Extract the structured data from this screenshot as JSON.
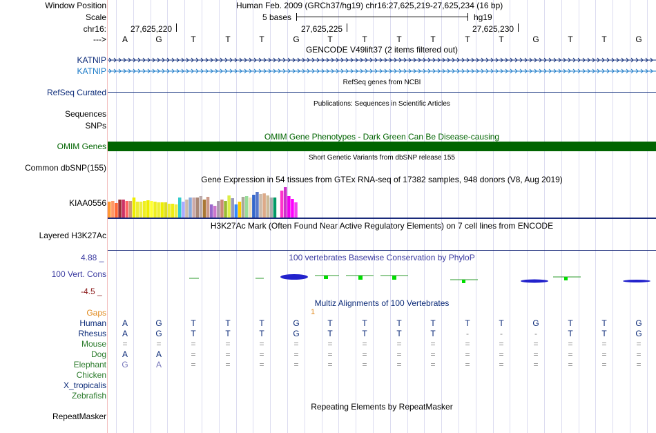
{
  "header": {
    "window_position_label": "Window Position",
    "assembly_text": "Human Feb. 2009 (GRCh37/hg19)   chr16:27,625,219-27,625,234 (16 bp)",
    "scale_label": "Scale",
    "scale_text": "5 bases",
    "scale_assembly": "hg19",
    "chrom_label": "chr16:",
    "coord_1": "27,625,220",
    "coord_2": "27,625,225",
    "coord_3": "27,625,230",
    "strand_label": "--->"
  },
  "bases": [
    "A",
    "G",
    "T",
    "T",
    "T",
    "G",
    "T",
    "T",
    "T",
    "T",
    "T",
    "T",
    "G",
    "T",
    "T",
    "G"
  ],
  "tracks": {
    "gencode_title": "GENCODE V49lift37 (2 items filtered out)",
    "gene_1": "KATNIP",
    "gene_2": "KATNIP",
    "refseq_title": "RefSeq genes from NCBI",
    "refseq_label": "RefSeq Curated",
    "pubs_title": "Publications: Sequences in Scientific Articles",
    "sequences_label": "Sequences",
    "snps_label": "SNPs",
    "omim_title": "OMIM Gene Phenotypes - Dark Green Can Be Disease-causing",
    "omim_label": "OMIM Genes",
    "dbsnp_title": "Short Genetic Variants from dbSNP release 155",
    "dbsnp_label": "Common dbSNP(155)",
    "gtex_title": "Gene Expression in 54 tissues from GTEx RNA-seq of 17382 samples, 948 donors (V8, Aug 2019)",
    "gtex_label": "KIAA0556",
    "h3k27_title": "H3K27Ac Mark (Often Found Near Active Regulatory Elements) on 7 cell lines from ENCODE",
    "h3k27_label": "Layered H3K27Ac",
    "cons_title": "100 vertebrates Basewise Conservation by PhyloP",
    "cons_label": "100 Vert. Cons",
    "cons_max": "4.88 _",
    "cons_min": "-4.5 _",
    "multiz_title": "Multiz Alignments of 100 Vertebrates",
    "gaps_label": "Gaps",
    "gaps_value": "1",
    "repeat_title": "Repeating Elements by RepeatMasker",
    "repeat_label": "RepeatMasker"
  },
  "species": [
    {
      "name": "Human",
      "color": "#0b2a78",
      "bases": [
        "A",
        "G",
        "T",
        "T",
        "T",
        "G",
        "T",
        "T",
        "T",
        "T",
        "T",
        "T",
        "G",
        "T",
        "T",
        "G"
      ]
    },
    {
      "name": "Rhesus",
      "color": "#0b2a78",
      "bases": [
        "A",
        "G",
        "T",
        "T",
        "T",
        "G",
        "T",
        "T",
        "T",
        "T",
        "-",
        "-",
        "-",
        "T",
        "T",
        "G"
      ]
    },
    {
      "name": "Mouse",
      "color": "#2a7a2a",
      "bases": [
        "=",
        "=",
        "=",
        "=",
        "=",
        "=",
        "=",
        "=",
        "=",
        "=",
        "=",
        "=",
        "=",
        "=",
        "=",
        "="
      ]
    },
    {
      "name": "Dog",
      "color": "#2a7a2a",
      "bases": [
        "A",
        "A",
        "=",
        "=",
        "=",
        "=",
        "=",
        "=",
        "=",
        "=",
        "=",
        "=",
        "=",
        "=",
        "=",
        "="
      ]
    },
    {
      "name": "Elephant",
      "color": "#2a7a2a",
      "bases": [
        "G",
        "A",
        "=",
        "=",
        "=",
        "=",
        "=",
        "=",
        "=",
        "=",
        "=",
        "=",
        "=",
        "=",
        "=",
        "="
      ]
    },
    {
      "name": "Chicken",
      "color": "#2a7a2a",
      "bases": []
    },
    {
      "name": "X_tropicalis",
      "color": "#0b2a78",
      "bases": []
    },
    {
      "name": "Zebrafish",
      "color": "#2a7a2a",
      "bases": []
    }
  ],
  "gtex_values": [
    24,
    25,
    22,
    27,
    27,
    25,
    25,
    30,
    24,
    24,
    25,
    26,
    25,
    24,
    23,
    23,
    23,
    21,
    21,
    20,
    30,
    24,
    27,
    30,
    30,
    30,
    32,
    27,
    31,
    20,
    18,
    25,
    27,
    25,
    33,
    29,
    20,
    24,
    31,
    32,
    30,
    34,
    38,
    35,
    36,
    33,
    30,
    30,
    34,
    40,
    45,
    32,
    28,
    23
  ],
  "gtex_colors": [
    "#ff9933",
    "#ff9966",
    "#ff6633",
    "#993333",
    "#cc3366",
    "#ff6666",
    "#cc9977",
    "#eeee00",
    "#eeee33",
    "#eeee44",
    "#eeee22",
    "#eeee00",
    "#ffff33",
    "#eeee22",
    "#eeee33",
    "#eeee00",
    "#dddd22",
    "#eeee33",
    "#eeee11",
    "#eeee44",
    "#33cccc",
    "#aaaaff",
    "#ccbbaa",
    "#88aadd",
    "#ccaaaa",
    "#aa8877",
    "#bbaaaa",
    "#aa7733",
    "#cc9988",
    "#9966cc",
    "#cc77cc",
    "#aa99aa",
    "#cc8877",
    "#99bb33",
    "#ddee44",
    "#9999bb",
    "#3388ff",
    "#ffcc00",
    "#aaaa99",
    "#99dd99",
    "#eeddbb",
    "#3366cc",
    "#5577cc",
    "#ccbbaa",
    "#ddaa88",
    "#ccbb99",
    "#aaaaaa",
    "#009966",
    "#ffffff",
    "#ff33cc",
    "#cc33cc",
    "#ee00ee",
    "#ff00ff",
    "#ee44ee"
  ],
  "colors": {
    "label_blue": "#0b2a78",
    "label_cyan": "#1a7ac8",
    "omim_green": "#006400",
    "gaps_orange": "#e08a1e",
    "cons_red": "#8b1a1a",
    "cons_blue": "#3a3aa0"
  }
}
